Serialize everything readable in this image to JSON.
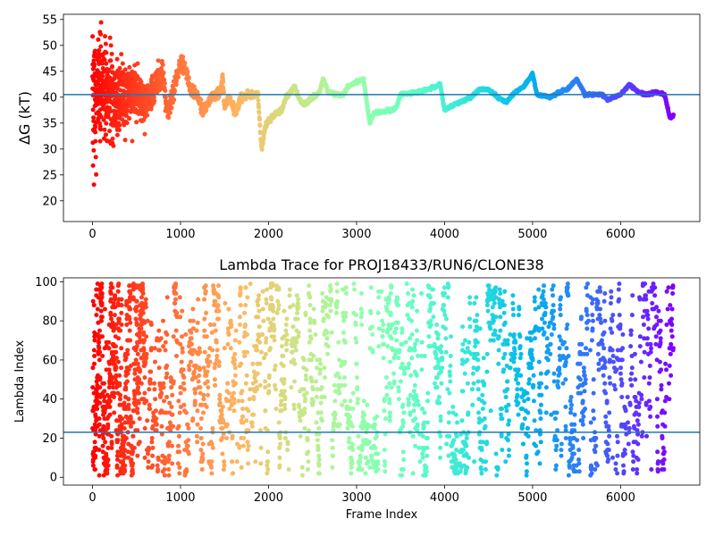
{
  "chart_data": [
    {
      "type": "scatter",
      "title": "",
      "xlabel": "",
      "ylabel": "ΔG (kT)",
      "xlim": [
        -330,
        6900
      ],
      "ylim": [
        16,
        56
      ],
      "xticks": [
        0,
        1000,
        2000,
        3000,
        4000,
        5000,
        6000
      ],
      "yticks": [
        20,
        25,
        30,
        35,
        40,
        45,
        50,
        55
      ],
      "hline": 40.5,
      "grid": false,
      "colormap": "rainbow (red at frame 0 to violet at last frame)",
      "trend_anchors": [
        [
          0,
          40
        ],
        [
          50,
          40
        ],
        [
          120,
          41
        ],
        [
          200,
          40
        ],
        [
          300,
          40
        ],
        [
          400,
          40
        ],
        [
          500,
          41
        ],
        [
          600,
          38
        ],
        [
          700,
          42
        ],
        [
          800,
          44
        ],
        [
          850,
          37
        ],
        [
          900,
          40
        ],
        [
          1000,
          47
        ],
        [
          1050,
          46
        ],
        [
          1100,
          42
        ],
        [
          1200,
          40
        ],
        [
          1250,
          37
        ],
        [
          1350,
          40
        ],
        [
          1450,
          41
        ],
        [
          1480,
          44
        ],
        [
          1500,
          38
        ],
        [
          1550,
          40
        ],
        [
          1620,
          37
        ],
        [
          1700,
          40
        ],
        [
          1800,
          40.5
        ],
        [
          1880,
          40.5
        ],
        [
          1920,
          30
        ],
        [
          1960,
          34
        ],
        [
          2000,
          35.5
        ],
        [
          2100,
          37
        ],
        [
          2150,
          37.5
        ],
        [
          2200,
          40
        ],
        [
          2250,
          41
        ],
        [
          2300,
          42
        ],
        [
          2340,
          40
        ],
        [
          2400,
          38.5
        ],
        [
          2500,
          40
        ],
        [
          2580,
          41
        ],
        [
          2620,
          43.5
        ],
        [
          2680,
          41
        ],
        [
          2800,
          40.5
        ],
        [
          2850,
          40.5
        ],
        [
          2900,
          42
        ],
        [
          3000,
          43
        ],
        [
          3080,
          43.5
        ],
        [
          3100,
          41
        ],
        [
          3150,
          35
        ],
        [
          3200,
          37
        ],
        [
          3400,
          37.5
        ],
        [
          3450,
          38
        ],
        [
          3500,
          40.5
        ],
        [
          3700,
          41
        ],
        [
          3800,
          41.5
        ],
        [
          3900,
          42
        ],
        [
          3950,
          42.5
        ],
        [
          4000,
          37.5
        ],
        [
          4100,
          38.5
        ],
        [
          4300,
          40
        ],
        [
          4400,
          41.5
        ],
        [
          4500,
          41.5
        ],
        [
          4600,
          40
        ],
        [
          4700,
          39
        ],
        [
          4800,
          41
        ],
        [
          4900,
          42
        ],
        [
          5000,
          44.5
        ],
        [
          5050,
          40.5
        ],
        [
          5200,
          40
        ],
        [
          5300,
          41
        ],
        [
          5400,
          41.5
        ],
        [
          5500,
          43.5
        ],
        [
          5600,
          40.5
        ],
        [
          5800,
          40.5
        ],
        [
          5850,
          39.5
        ],
        [
          6000,
          40.5
        ],
        [
          6100,
          42.5
        ],
        [
          6200,
          41
        ],
        [
          6300,
          40.5
        ],
        [
          6400,
          41
        ],
        [
          6500,
          40.5
        ],
        [
          6560,
          36
        ],
        [
          6600,
          36.5
        ]
      ],
      "noise_profile": [
        [
          0,
          15
        ],
        [
          100,
          10
        ],
        [
          300,
          6
        ],
        [
          500,
          3.5
        ],
        [
          800,
          2
        ],
        [
          1200,
          1
        ],
        [
          2000,
          0.4
        ],
        [
          3000,
          0.25
        ],
        [
          6600,
          0.2
        ]
      ]
    },
    {
      "type": "scatter",
      "title": "Lambda Trace for PROJ18433/RUN6/CLONE38",
      "xlabel": "Frame Index",
      "ylabel": "Lambda Index",
      "xlim": [
        -330,
        6900
      ],
      "ylim": [
        -4,
        102
      ],
      "xticks": [
        0,
        1000,
        2000,
        3000,
        4000,
        5000,
        6000
      ],
      "yticks": [
        0,
        20,
        40,
        60,
        80,
        100
      ],
      "hline": 23,
      "grid": false,
      "colormap": "rainbow (red at frame 0 to violet at last frame)",
      "value_range": [
        1,
        99
      ],
      "frame_count": 6600
    }
  ]
}
